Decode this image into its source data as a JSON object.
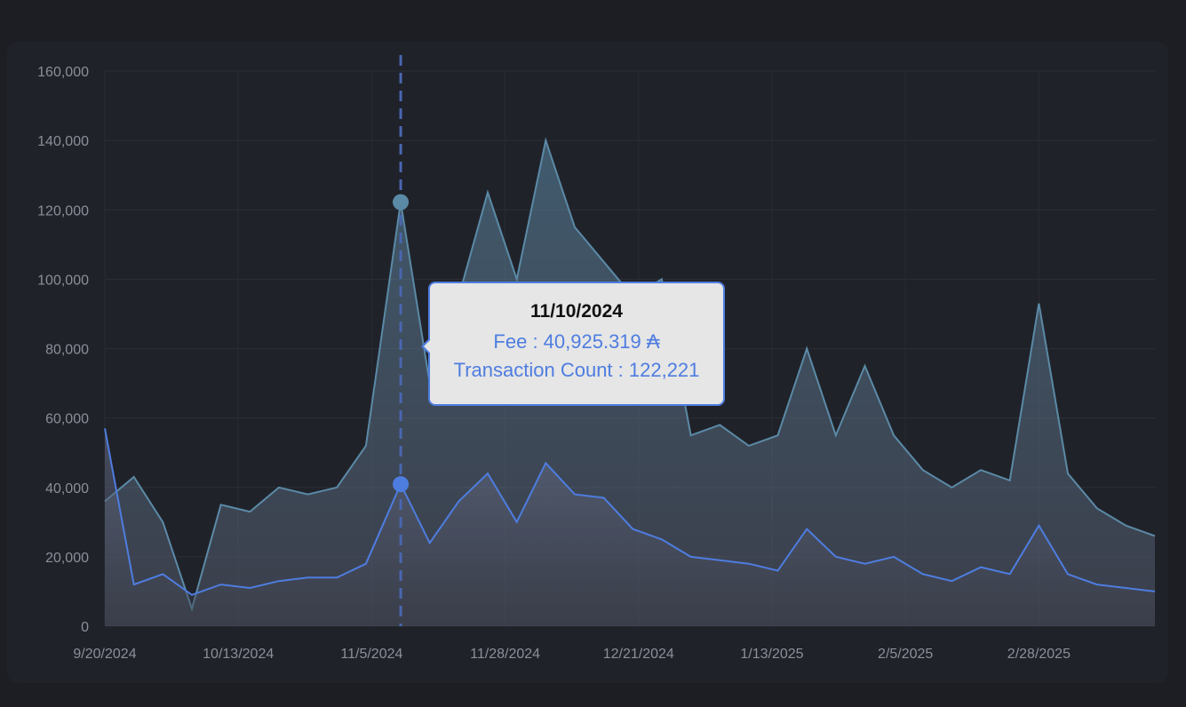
{
  "chart_data": {
    "type": "area",
    "x_dates": [
      "9/20/2024",
      "9/25/2024",
      "9/30/2024",
      "10/5/2024",
      "10/10/2024",
      "10/15/2024",
      "10/20/2024",
      "10/25/2024",
      "10/30/2024",
      "11/4/2024",
      "11/10/2024",
      "11/15/2024",
      "11/20/2024",
      "11/25/2024",
      "11/30/2024",
      "12/5/2024",
      "12/10/2024",
      "12/15/2024",
      "12/20/2024",
      "12/25/2024",
      "12/30/2024",
      "1/4/2025",
      "1/9/2025",
      "1/14/2025",
      "1/19/2025",
      "1/24/2025",
      "1/29/2025",
      "2/3/2025",
      "2/8/2025",
      "2/13/2025",
      "2/18/2025",
      "2/23/2025",
      "2/28/2025",
      "3/5/2025",
      "3/10/2025",
      "3/15/2025",
      "3/20/2025"
    ],
    "series": [
      {
        "name": "Transaction Count",
        "color": "#5b8aa6",
        "values": [
          36000,
          43000,
          30000,
          5000,
          35000,
          33000,
          40000,
          38000,
          40000,
          52000,
          122221,
          70000,
          95000,
          125000,
          100000,
          140000,
          115000,
          105000,
          95000,
          100000,
          55000,
          58000,
          52000,
          55000,
          80000,
          55000,
          75000,
          55000,
          45000,
          40000,
          45000,
          42000,
          93000,
          44000,
          34000,
          29000,
          26000
        ]
      },
      {
        "name": "Fee",
        "color": "#4e7de0",
        "values": [
          57000,
          12000,
          15000,
          9000,
          12000,
          11000,
          13000,
          14000,
          14000,
          18000,
          40925.319,
          24000,
          36000,
          44000,
          30000,
          47000,
          38000,
          37000,
          28000,
          25000,
          20000,
          19000,
          18000,
          16000,
          28000,
          20000,
          18000,
          20000,
          15000,
          13000,
          17000,
          15000,
          29000,
          15000,
          12000,
          11000,
          10000
        ]
      }
    ],
    "x_tick_labels": [
      "9/20/2024",
      "10/13/2024",
      "11/5/2024",
      "11/28/2024",
      "12/21/2024",
      "1/13/2025",
      "2/5/2025",
      "2/28/2025"
    ],
    "y_tick_labels": [
      "0",
      "20,000",
      "40,000",
      "60,000",
      "80,000",
      "100,000",
      "120,000",
      "140,000",
      "160,000"
    ],
    "ylim": [
      0,
      160000
    ],
    "grid": true,
    "title": "",
    "xlabel": "",
    "ylabel": ""
  },
  "tooltip": {
    "date": "11/10/2024",
    "fee_line": "Fee : 40,925.319 ₳",
    "count_line": "Transaction Count : 122,221"
  }
}
